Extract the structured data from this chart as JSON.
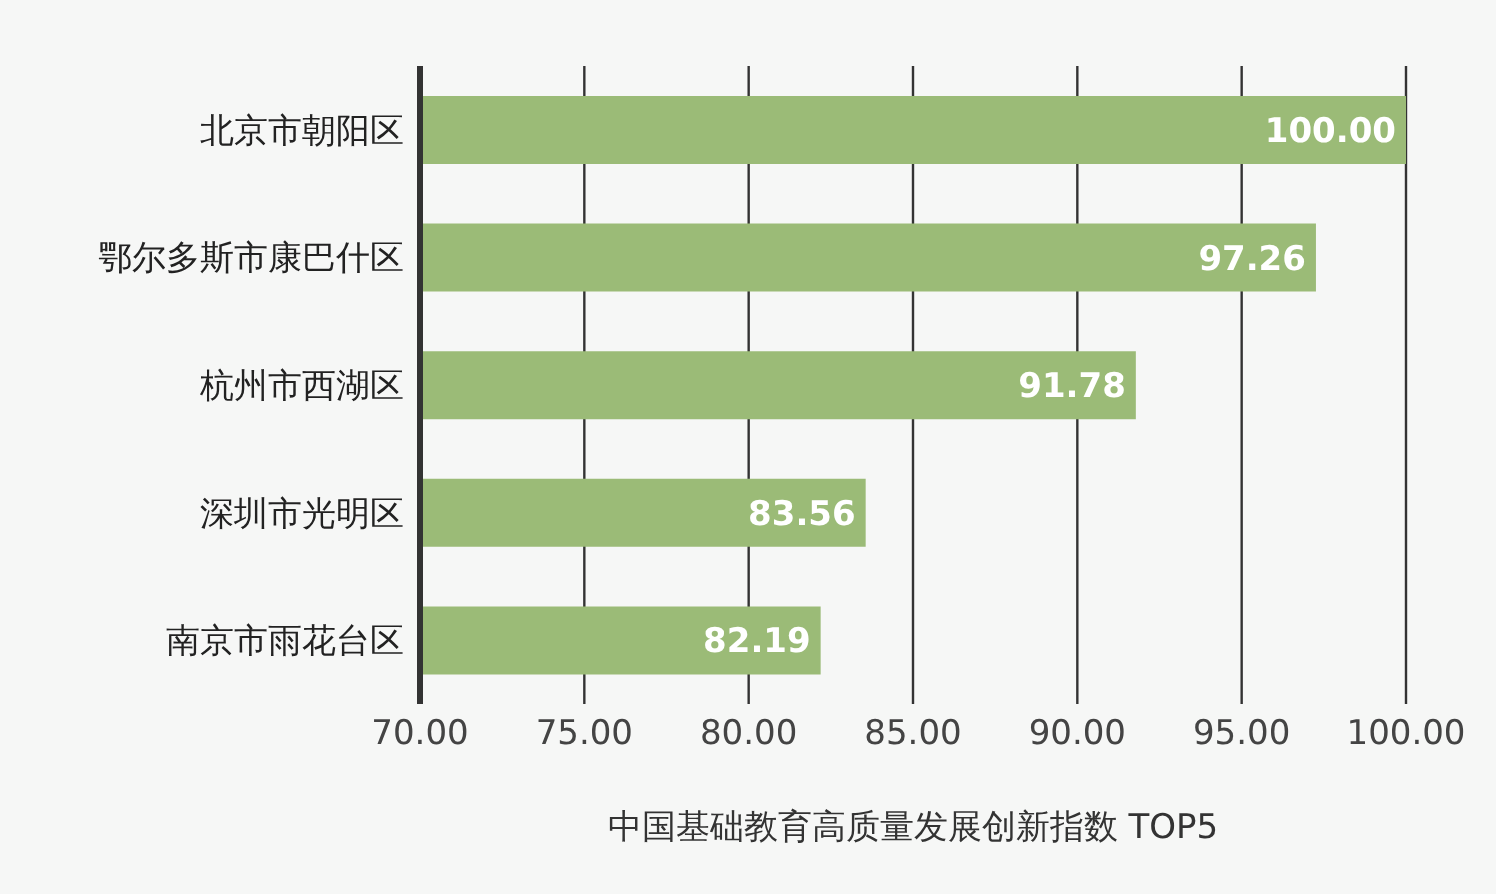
{
  "chart_data": {
    "type": "bar",
    "orientation": "horizontal",
    "xlabel": "中国基础教育高质量发展创新指数 TOP5",
    "categories": [
      "北京市朝阳区",
      "鄂尔多斯市康巴什区",
      "杭州市西湖区",
      "深圳市光明区",
      "南京市雨花台区"
    ],
    "values": [
      100.0,
      97.26,
      91.78,
      83.56,
      82.19
    ],
    "value_labels": [
      "100.00",
      "97.26",
      "91.78",
      "83.56",
      "82.19"
    ],
    "color": "#9bbb77",
    "xlim": [
      70,
      100
    ],
    "xticks": [
      {
        "value": 70,
        "label": "70.00"
      },
      {
        "value": 75,
        "label": "75.00"
      },
      {
        "value": 80,
        "label": "80.00"
      },
      {
        "value": 85,
        "label": "85.00"
      },
      {
        "value": 90,
        "label": "90.00"
      },
      {
        "value": 95,
        "label": "95.00"
      },
      {
        "value": 100,
        "label": "100.00"
      }
    ],
    "grid": "x"
  }
}
